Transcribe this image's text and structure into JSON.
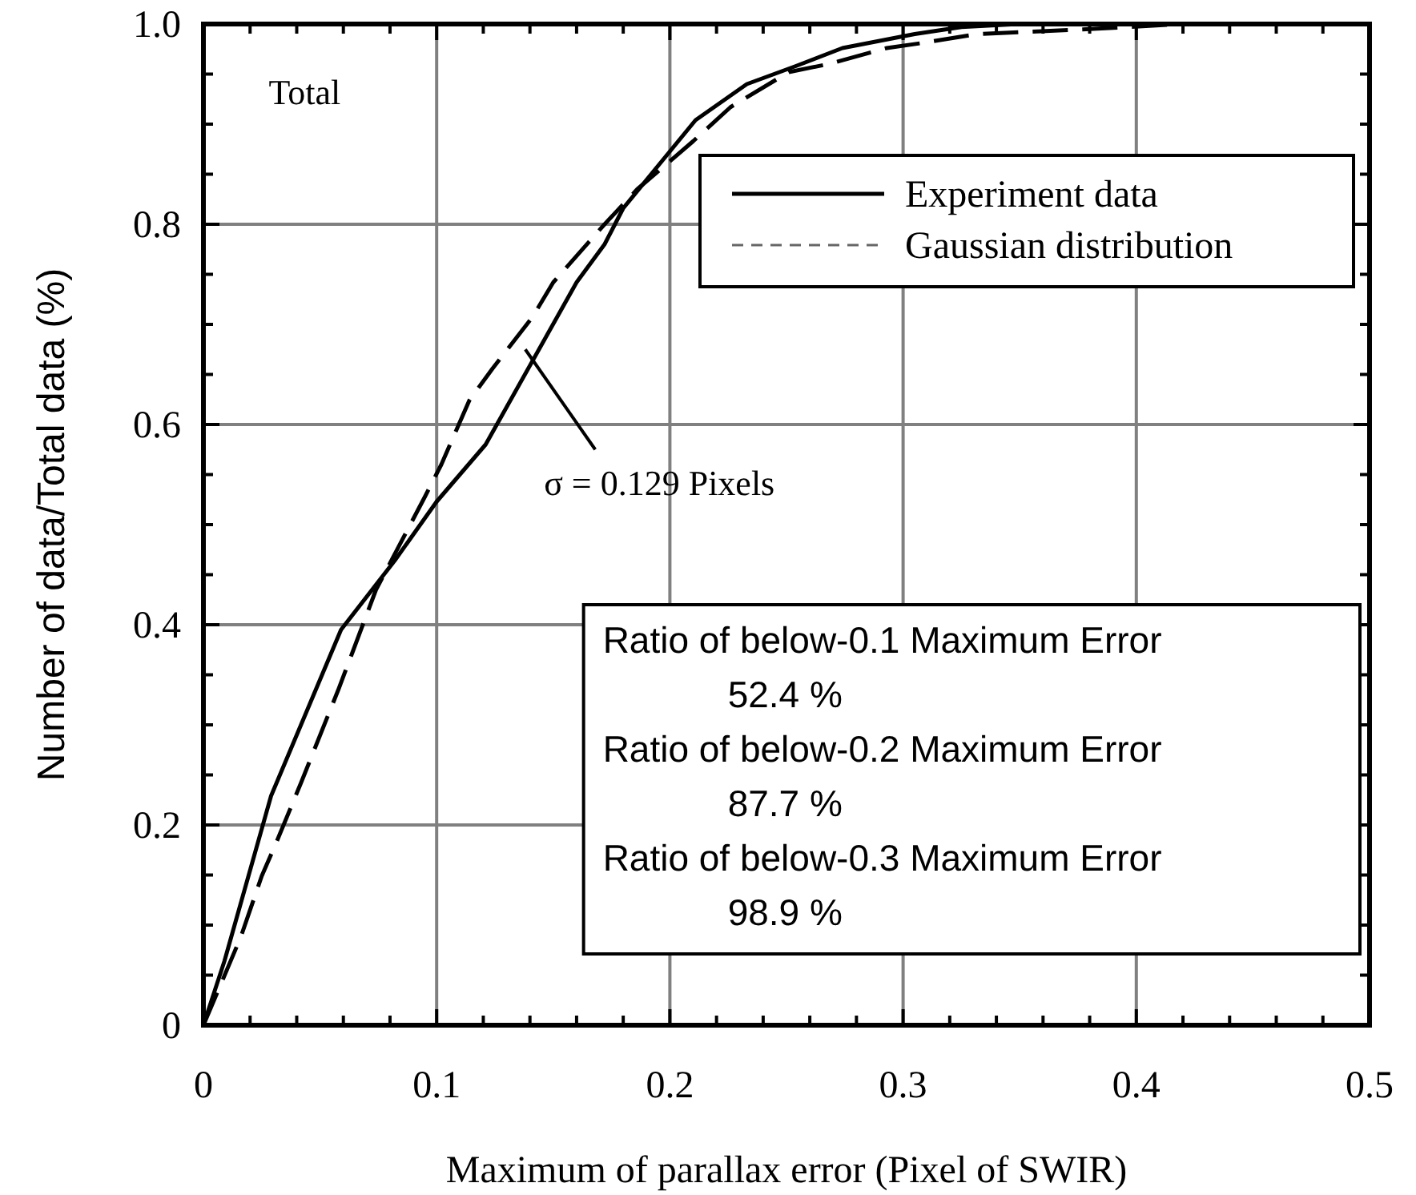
{
  "chart_data": {
    "type": "line",
    "xlabel": "Maximum of parallax error (Pixel of SWIR)",
    "ylabel": "Number of data/Total data (%)",
    "xlim": [
      0,
      0.5
    ],
    "ylim": [
      0,
      1
    ],
    "xticks": [
      0,
      0.1,
      0.2,
      0.3,
      0.4,
      0.5
    ],
    "yticks": [
      0,
      0.2,
      0.4,
      0.6,
      0.8,
      {
        "value": 1,
        "label": "1.0"
      }
    ],
    "grid": true,
    "legend": "top right",
    "marker": "none",
    "series": [
      {
        "name": "Experiment data",
        "color": "#000000",
        "line_style": "solid",
        "x": [
          0,
          0.009,
          0.029,
          0.059,
          0.082,
          0.1,
          0.121,
          0.16,
          0.172,
          0.18,
          0.211,
          0.233,
          0.254,
          0.274,
          0.305,
          0.325,
          0.35,
          0.44
        ],
        "values": [
          0,
          0.064,
          0.229,
          0.395,
          0.464,
          0.523,
          0.58,
          0.742,
          0.78,
          0.816,
          0.904,
          0.94,
          0.958,
          0.976,
          0.99,
          0.997,
          1,
          1
        ]
      },
      {
        "name": "Gaussian distribution",
        "color": "#000000",
        "line_style": "dashed",
        "x": [
          0,
          0.016,
          0.025,
          0.031,
          0.042,
          0.058,
          0.064,
          0.074,
          0.095,
          0.102,
          0.114,
          0.124,
          0.141,
          0.15,
          0.172,
          0.186,
          0.21,
          0.226,
          0.251,
          0.268,
          0.293,
          0.308,
          0.332,
          0.38,
          0.42
        ],
        "values": [
          0,
          0.088,
          0.149,
          0.181,
          0.243,
          0.336,
          0.373,
          0.435,
          0.528,
          0.56,
          0.624,
          0.656,
          0.707,
          0.742,
          0.8,
          0.835,
          0.883,
          0.917,
          0.952,
          0.96,
          0.976,
          0.981,
          0.99,
          0.995,
          1
        ]
      }
    ],
    "annotations": [
      "Total",
      "σ = 0.129 Pixels",
      "Ratio of below-0.1 Maximum Error",
      "52.4 %",
      "Ratio of below-0.2 Maximum Error",
      "87.7 %",
      "Ratio of below-0.3 Maximum Error",
      "98.9 %"
    ]
  }
}
